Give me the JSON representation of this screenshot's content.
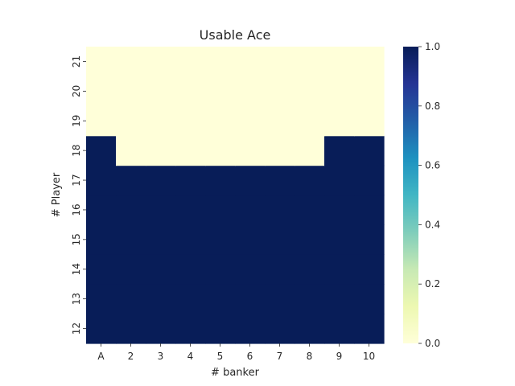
{
  "chart_data": {
    "type": "heatmap",
    "title": "Usable Ace",
    "xlabel": "# banker",
    "ylabel": "# Player",
    "x_categories": [
      "A",
      "2",
      "3",
      "4",
      "5",
      "6",
      "7",
      "8",
      "9",
      "10"
    ],
    "y_categories": [
      "12",
      "13",
      "14",
      "15",
      "16",
      "17",
      "18",
      "19",
      "20",
      "21"
    ],
    "values": [
      [
        1,
        1,
        1,
        1,
        1,
        1,
        1,
        1,
        1,
        1
      ],
      [
        1,
        1,
        1,
        1,
        1,
        1,
        1,
        1,
        1,
        1
      ],
      [
        1,
        1,
        1,
        1,
        1,
        1,
        1,
        1,
        1,
        1
      ],
      [
        1,
        1,
        1,
        1,
        1,
        1,
        1,
        1,
        1,
        1
      ],
      [
        1,
        1,
        1,
        1,
        1,
        1,
        1,
        1,
        1,
        1
      ],
      [
        1,
        1,
        1,
        1,
        1,
        1,
        1,
        1,
        1,
        1
      ],
      [
        1,
        0,
        0,
        0,
        0,
        0,
        0,
        0,
        1,
        1
      ],
      [
        0,
        0,
        0,
        0,
        0,
        0,
        0,
        0,
        0,
        0
      ],
      [
        0,
        0,
        0,
        0,
        0,
        0,
        0,
        0,
        0,
        0
      ],
      [
        0,
        0,
        0,
        0,
        0,
        0,
        0,
        0,
        0,
        0
      ]
    ],
    "vmin": 0.0,
    "vmax": 1.0,
    "colormap": "YlGnBu",
    "colorbar_ticks": [
      "0.0",
      "0.2",
      "0.4",
      "0.6",
      "0.8",
      "1.0"
    ],
    "colorbar_values": [
      0.0,
      0.2,
      0.4,
      0.6,
      0.8,
      1.0
    ],
    "color_stops": [
      "#ffffd9",
      "#edf8b1",
      "#c7e9b4",
      "#7fcdbb",
      "#41b6c4",
      "#1d91c0",
      "#225ea8",
      "#253494",
      "#081d58"
    ]
  }
}
